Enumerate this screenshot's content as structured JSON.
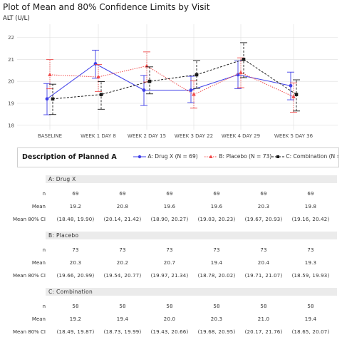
{
  "title": "Plot of Mean and 80% Confidence Limits by Visit",
  "ylabel": "ALT (U/L)",
  "chart_data": {
    "type": "line",
    "title": "Plot of Mean and 80% Confidence Limits by Visit",
    "xlabel": "",
    "ylabel": "ALT (U/L)",
    "ylim": [
      17.8,
      22.6
    ],
    "yticks": [
      18,
      19,
      20,
      21,
      22
    ],
    "grid": true,
    "categories": [
      "BASELINE",
      "WEEK 1 DAY 8",
      "WEEK 2 DAY 15",
      "WEEK 3 DAY 22",
      "WEEK 4 DAY 29",
      "WEEK 5 DAY 36"
    ],
    "series": [
      {
        "name": "A: Drug X (N = 69)",
        "color": "#3f3fe8",
        "marker": "circle",
        "line": "solid",
        "mean": [
          19.2,
          20.8,
          19.6,
          19.6,
          20.3,
          19.8
        ],
        "lower": [
          18.48,
          20.14,
          18.9,
          19.03,
          19.67,
          19.16
        ],
        "upper": [
          19.9,
          21.42,
          20.27,
          20.23,
          20.93,
          20.42
        ]
      },
      {
        "name": "B: Placebo (N = 73)",
        "color": "#f04848",
        "marker": "triangle",
        "line": "dotted",
        "mean": [
          20.3,
          20.2,
          20.7,
          19.4,
          20.4,
          19.3
        ],
        "lower": [
          19.66,
          19.54,
          19.97,
          18.78,
          19.71,
          18.59
        ],
        "upper": [
          20.99,
          20.77,
          21.34,
          20.02,
          21.07,
          19.93
        ]
      },
      {
        "name": "C: Combination (N = 58)",
        "color": "#1a1a1a",
        "marker": "square",
        "line": "dashed",
        "mean": [
          19.2,
          19.4,
          20.0,
          20.3,
          21.0,
          19.4
        ],
        "lower": [
          18.49,
          18.73,
          19.43,
          19.68,
          20.17,
          18.65
        ],
        "upper": [
          19.87,
          19.99,
          20.66,
          20.95,
          21.76,
          20.07
        ]
      }
    ]
  },
  "legend": {
    "title": "Description of Planned A",
    "items": [
      "A: Drug X (N = 69)",
      "B: Placebo (N = 73)",
      "C: Combination (N = 58)"
    ]
  },
  "table": {
    "row_labels": [
      "n",
      "Mean",
      "Mean 80% CI"
    ],
    "groups": [
      {
        "name": "A: Drug X",
        "n": [
          "69",
          "69",
          "69",
          "69",
          "69",
          "69"
        ],
        "mean": [
          "19.2",
          "20.8",
          "19.6",
          "19.6",
          "20.3",
          "19.8"
        ],
        "ci": [
          "(18.48, 19.90)",
          "(20.14, 21.42)",
          "(18.90, 20.27)",
          "(19.03, 20.23)",
          "(19.67, 20.93)",
          "(19.16, 20.42)"
        ]
      },
      {
        "name": "B: Placebo",
        "n": [
          "73",
          "73",
          "73",
          "73",
          "73",
          "73"
        ],
        "mean": [
          "20.3",
          "20.2",
          "20.7",
          "19.4",
          "20.4",
          "19.3"
        ],
        "ci": [
          "(19.66, 20.99)",
          "(19.54, 20.77)",
          "(19.97, 21.34)",
          "(18.78, 20.02)",
          "(19.71, 21.07)",
          "(18.59, 19.93)"
        ]
      },
      {
        "name": "C: Combination",
        "n": [
          "58",
          "58",
          "58",
          "58",
          "58",
          "58"
        ],
        "mean": [
          "19.2",
          "19.4",
          "20.0",
          "20.3",
          "21.0",
          "19.4"
        ],
        "ci": [
          "(18.49, 19.87)",
          "(18.73, 19.99)",
          "(19.43, 20.66)",
          "(19.68, 20.95)",
          "(20.17, 21.76)",
          "(18.65, 20.07)"
        ]
      }
    ]
  }
}
